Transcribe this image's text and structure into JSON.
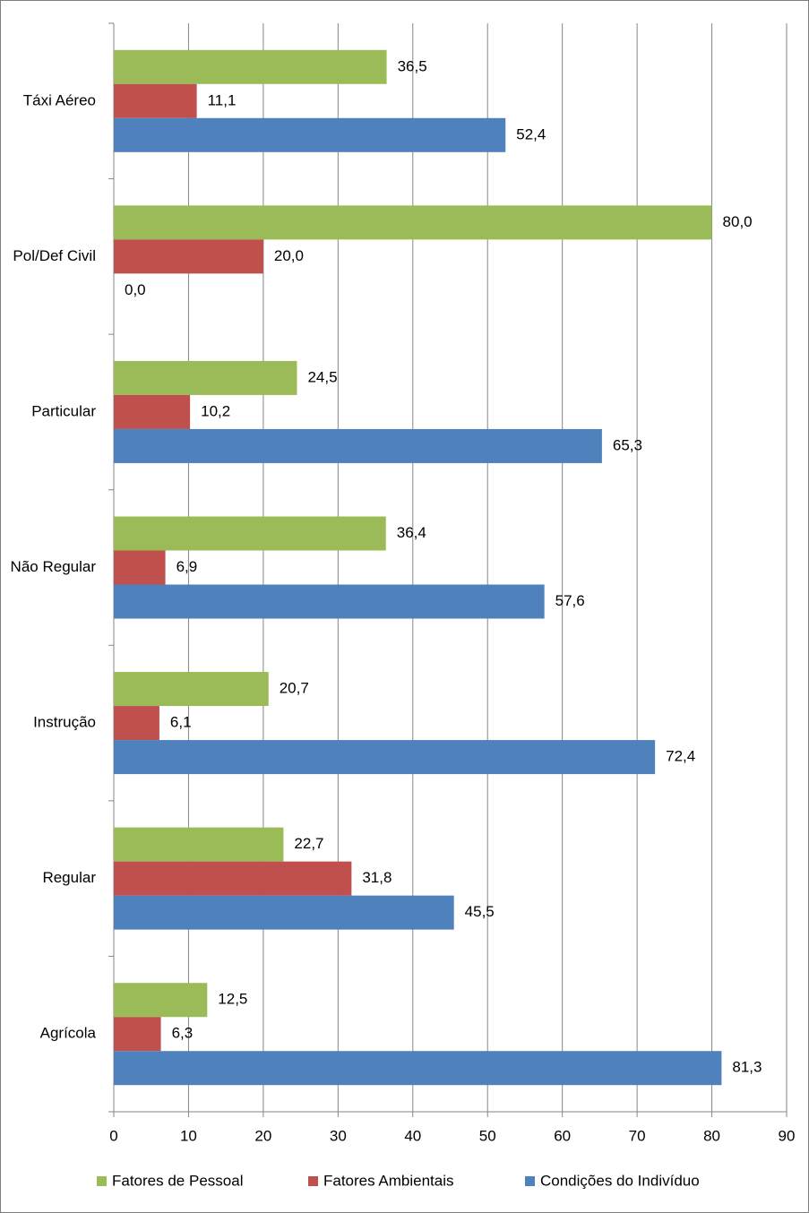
{
  "chart_data": {
    "type": "hbar",
    "categories": [
      "Táxi Aéreo",
      "Pol/Def Civil",
      "Particular",
      "Não Regular",
      "Instrução",
      "Regular",
      "Agrícola"
    ],
    "series": [
      {
        "name": "Fatores de Pessoal",
        "color": "#9bbb59",
        "values": [
          36.5,
          80.0,
          24.5,
          36.4,
          20.7,
          22.7,
          12.5
        ],
        "value_labels": [
          "36,5",
          "80,0",
          "24,5",
          "36,4",
          "20,7",
          "22,7",
          "12,5"
        ]
      },
      {
        "name": "Fatores Ambientais",
        "color": "#c0504d",
        "values": [
          11.1,
          20.0,
          10.2,
          6.9,
          6.1,
          31.8,
          6.3
        ],
        "value_labels": [
          "11,1",
          "20,0",
          "10,2",
          "6,9",
          "6,1",
          "31,8",
          "6,3"
        ]
      },
      {
        "name": "Condições do Indivíduo",
        "color": "#4f81bd",
        "values": [
          52.4,
          0.0,
          65.3,
          57.6,
          72.4,
          45.5,
          81.3
        ],
        "value_labels": [
          "52,4",
          "0,0",
          "65,3",
          "57,6",
          "72,4",
          "45,5",
          "81,3"
        ]
      }
    ],
    "xlim": [
      0,
      90
    ],
    "xticks": [
      0,
      10,
      20,
      30,
      40,
      50,
      60,
      70,
      80,
      90
    ],
    "grid": true,
    "legend": "bottom"
  }
}
